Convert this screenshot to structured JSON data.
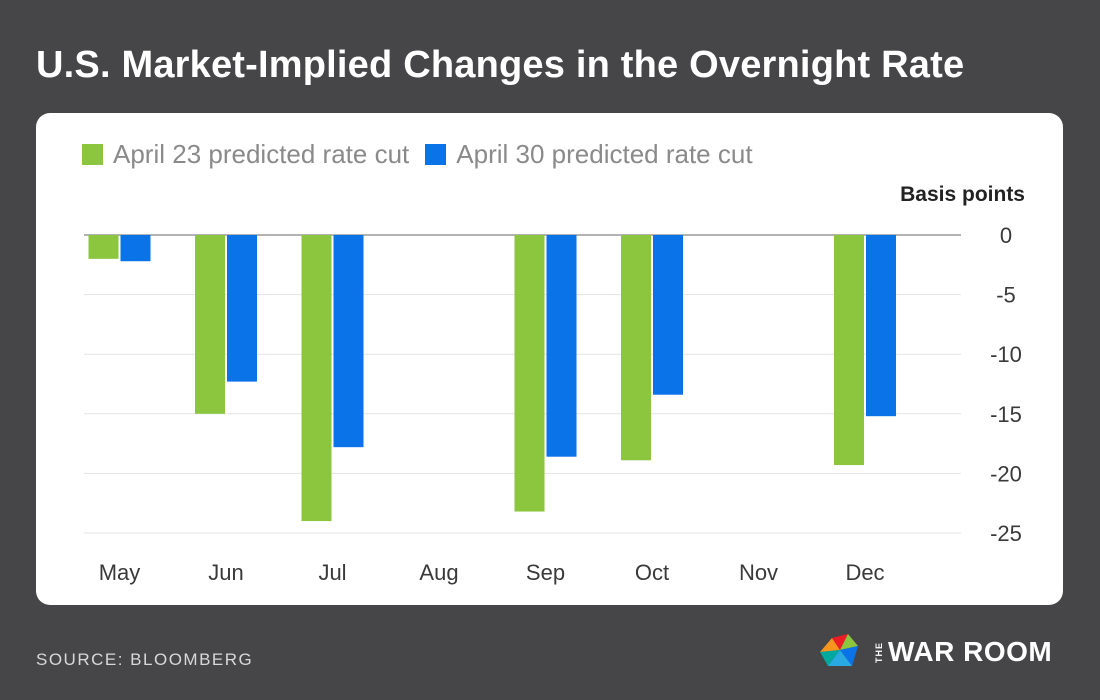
{
  "title": "U.S. Market-Implied Changes in the Overnight Rate",
  "source": "SOURCE: BLOOMBERG",
  "brand": {
    "the": "THE",
    "name": "WAR ROOM"
  },
  "colors": {
    "series1": "#8cc63f",
    "series2": "#0a73e8",
    "background": "#464648"
  },
  "chart_data": {
    "type": "bar",
    "title": "U.S. Market-Implied Changes in the Overnight Rate",
    "ylabel": "Basis points",
    "xlabel": "",
    "categories": [
      "May",
      "Jun",
      "Jul",
      "Aug",
      "Sep",
      "Oct",
      "Nov",
      "Dec"
    ],
    "series": [
      {
        "name": "April 23 predicted rate cut",
        "color": "#8cc63f",
        "values": [
          -2.0,
          -15.0,
          -24.0,
          null,
          -23.2,
          -18.9,
          null,
          -19.3
        ]
      },
      {
        "name": "April 30 predicted rate cut",
        "color": "#0a73e8",
        "values": [
          -2.2,
          -12.3,
          -17.8,
          null,
          -18.6,
          -13.4,
          null,
          -15.2
        ]
      }
    ],
    "ylim": [
      -25,
      0
    ],
    "yticks": [
      0,
      -5,
      -10,
      -15,
      -20,
      -25
    ],
    "legend": "top-left",
    "grid": true
  }
}
